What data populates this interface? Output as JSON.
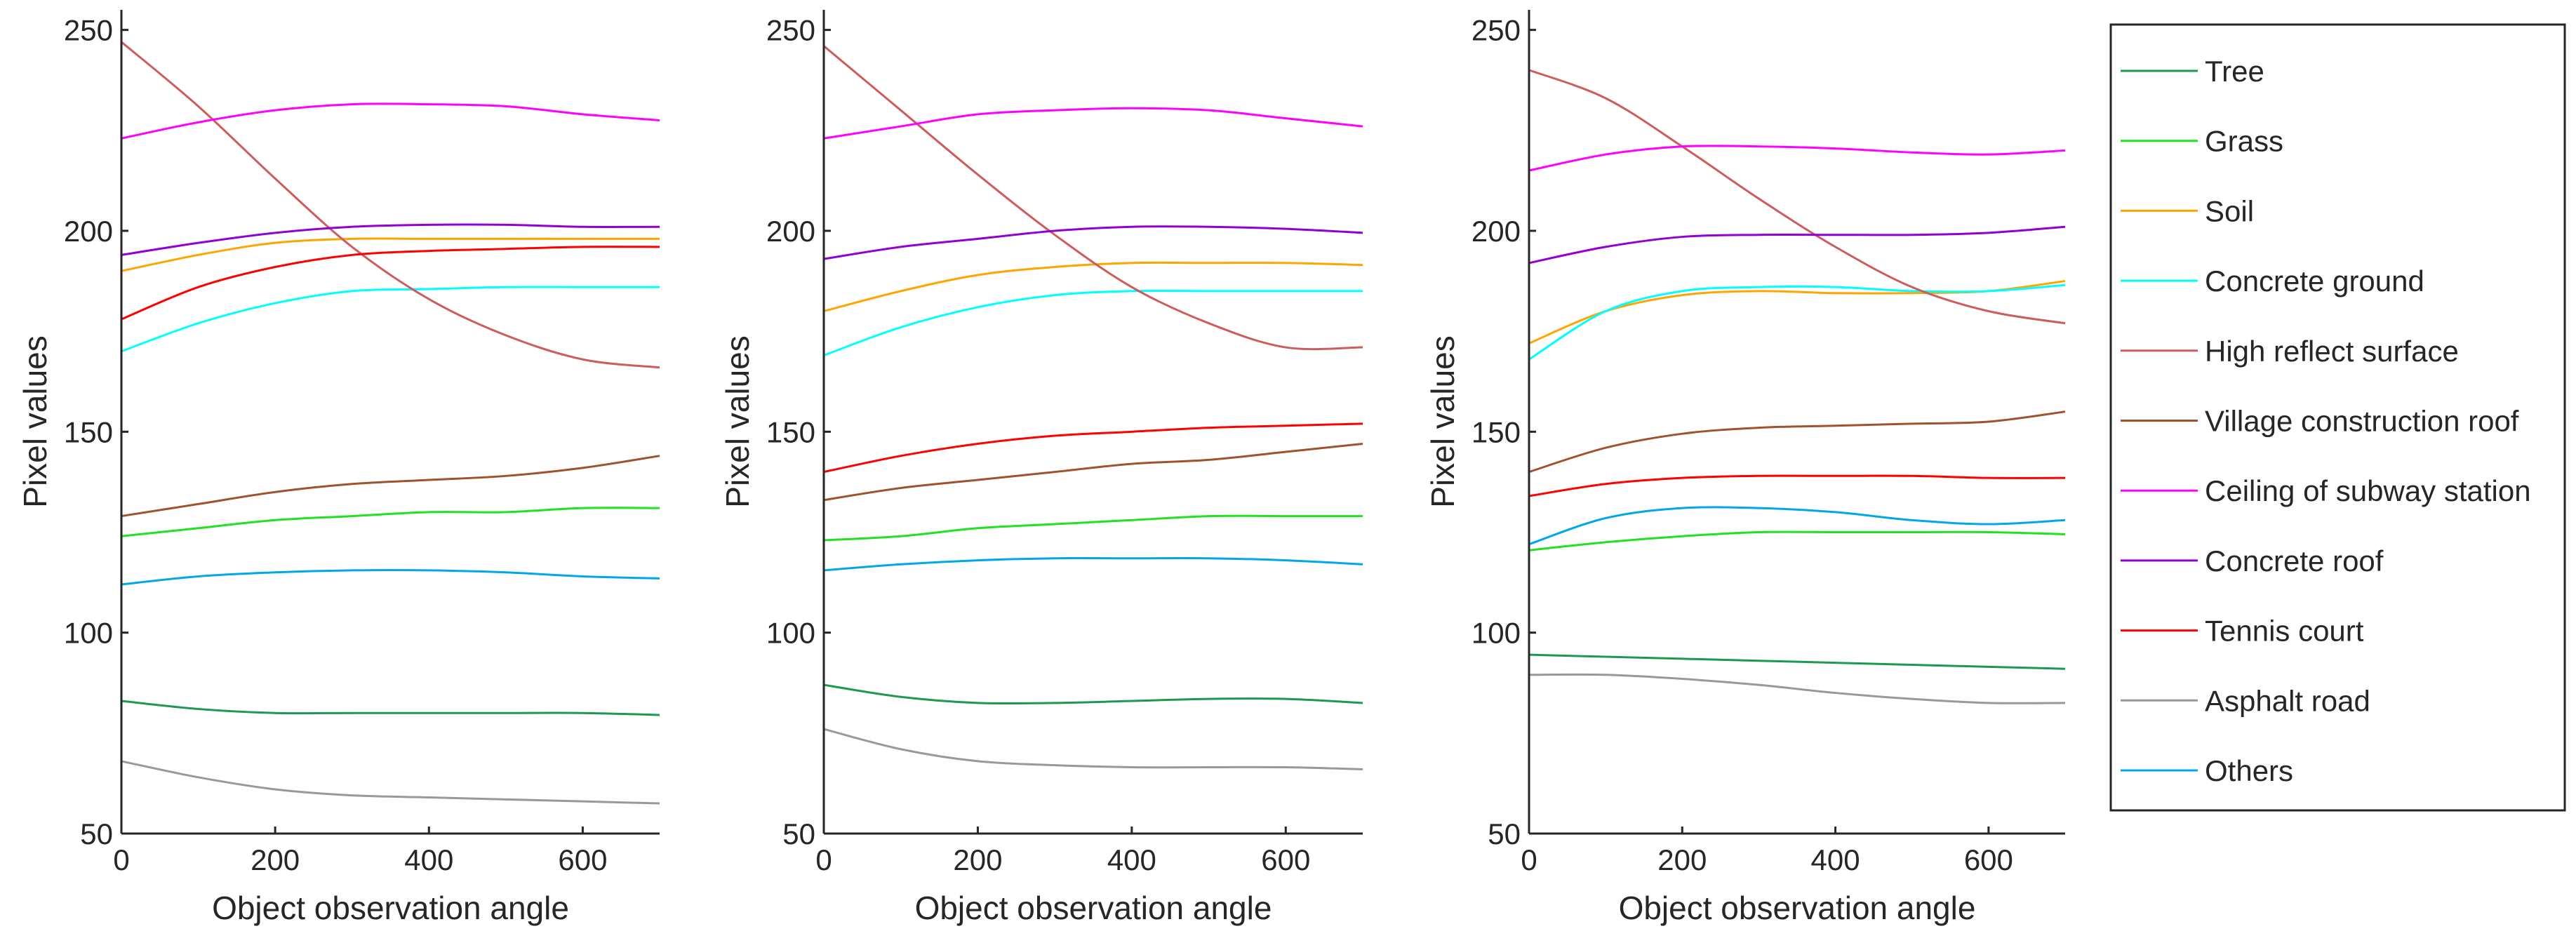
{
  "chart_data": [
    {
      "type": "line",
      "xlabel": "Object observation angle",
      "ylabel": "Pixel values",
      "x": [
        0,
        100,
        200,
        300,
        400,
        500,
        600,
        700
      ],
      "xlim": [
        0,
        700
      ],
      "ylim": [
        50,
        255
      ],
      "xticks": [
        0,
        200,
        400,
        600
      ],
      "yticks": [
        50,
        100,
        150,
        200,
        250
      ],
      "series": [
        {
          "name": "Tree",
          "color": "#1b9a50",
          "values": [
            83,
            81,
            80,
            80,
            80,
            80,
            80,
            79.5
          ]
        },
        {
          "name": "Grass",
          "color": "#22e022",
          "values": [
            124,
            126,
            128,
            129,
            130,
            130,
            131,
            131
          ]
        },
        {
          "name": "Soil",
          "color": "#ffa500",
          "values": [
            190,
            194,
            197,
            198,
            198,
            198,
            198,
            198
          ]
        },
        {
          "name": "Concrete ground",
          "color": "#00ffff",
          "values": [
            170,
            177,
            182,
            185,
            185.5,
            186,
            186,
            186
          ]
        },
        {
          "name": "High reflect surface",
          "color": "#cd5c5c",
          "values": [
            247,
            231,
            213,
            196,
            183,
            174,
            168,
            166
          ]
        },
        {
          "name": "Village construction roof",
          "color": "#a0522d",
          "values": [
            129,
            132,
            135,
            137,
            138,
            139,
            141,
            144
          ]
        },
        {
          "name": "Ceiling of subway station",
          "color": "#ff00ff",
          "values": [
            223,
            227,
            230,
            231.5,
            231.5,
            231,
            229,
            227.5
          ]
        },
        {
          "name": "Concrete roof",
          "color": "#9400d3",
          "values": [
            194,
            197,
            199.5,
            201,
            201.5,
            201.5,
            201,
            201
          ]
        },
        {
          "name": "Tennis court",
          "color": "#ff0000",
          "values": [
            178,
            186,
            191,
            194,
            195,
            195.5,
            196,
            196
          ]
        },
        {
          "name": "Asphalt road",
          "color": "#999999",
          "values": [
            68,
            64,
            61,
            59.5,
            59,
            58.5,
            58,
            57.5
          ]
        },
        {
          "name": "Others",
          "color": "#00a8e8",
          "values": [
            112,
            114,
            115,
            115.5,
            115.5,
            115,
            114,
            113.5
          ]
        }
      ]
    },
    {
      "type": "line",
      "xlabel": "Object observation angle",
      "ylabel": "Pixel values",
      "x": [
        0,
        100,
        200,
        300,
        400,
        500,
        600,
        700
      ],
      "xlim": [
        0,
        700
      ],
      "ylim": [
        50,
        255
      ],
      "xticks": [
        0,
        200,
        400,
        600
      ],
      "yticks": [
        50,
        100,
        150,
        200,
        250
      ],
      "series": [
        {
          "values": [
            87,
            84,
            82.5,
            82.5,
            83,
            83.5,
            83.5,
            82.5
          ]
        },
        {
          "values": [
            123,
            124,
            126,
            127,
            128,
            129,
            129,
            129
          ]
        },
        {
          "values": [
            180,
            185,
            189,
            191,
            192,
            192,
            192,
            191.5
          ]
        },
        {
          "values": [
            169,
            176,
            181,
            184,
            185,
            185,
            185,
            185
          ]
        },
        {
          "values": [
            246,
            230,
            214,
            199,
            186,
            177,
            171,
            171
          ]
        },
        {
          "values": [
            133,
            136,
            138,
            140,
            142,
            143,
            145,
            147
          ]
        },
        {
          "values": [
            223,
            226,
            229,
            230,
            230.5,
            230,
            228,
            226
          ]
        },
        {
          "values": [
            193,
            196,
            198,
            200,
            201,
            201,
            200.5,
            199.5
          ]
        },
        {
          "values": [
            140,
            144,
            147,
            149,
            150,
            151,
            151.5,
            152
          ]
        },
        {
          "values": [
            76,
            71,
            68,
            67,
            66.5,
            66.5,
            66.5,
            66
          ]
        },
        {
          "values": [
            115.5,
            117,
            118,
            118.5,
            118.5,
            118.5,
            118,
            117
          ]
        }
      ]
    },
    {
      "type": "line",
      "xlabel": "Object observation angle",
      "ylabel": "Pixel values",
      "x": [
        0,
        100,
        200,
        300,
        400,
        500,
        600,
        700
      ],
      "xlim": [
        0,
        700
      ],
      "ylim": [
        50,
        255
      ],
      "xticks": [
        0,
        200,
        400,
        600
      ],
      "yticks": [
        50,
        100,
        150,
        200,
        250
      ],
      "series": [
        {
          "values": [
            94.5,
            94,
            93.5,
            93,
            92.5,
            92,
            91.5,
            91
          ]
        },
        {
          "values": [
            120.5,
            122.5,
            124,
            125,
            125,
            125,
            125,
            124.5
          ]
        },
        {
          "values": [
            172,
            180,
            184,
            185,
            184.5,
            184.5,
            185,
            187.5
          ]
        },
        {
          "values": [
            168,
            180,
            185,
            186,
            186,
            185,
            185,
            186.5
          ]
        },
        {
          "values": [
            240,
            233,
            221,
            208,
            196,
            186,
            180,
            177
          ]
        },
        {
          "values": [
            140,
            146,
            149.5,
            151,
            151.5,
            152,
            152.5,
            155
          ]
        },
        {
          "values": [
            215,
            219,
            221,
            221,
            220.5,
            219.5,
            219,
            220
          ]
        },
        {
          "values": [
            192,
            196,
            198.5,
            199,
            199,
            199,
            199.5,
            201
          ]
        },
        {
          "values": [
            134,
            137,
            138.5,
            139,
            139,
            139,
            138.5,
            138.5
          ]
        },
        {
          "values": [
            89.5,
            89.5,
            88.5,
            87,
            85,
            83.5,
            82.5,
            82.5
          ]
        },
        {
          "values": [
            122,
            128.5,
            131,
            131,
            130,
            128,
            127,
            128
          ]
        }
      ]
    }
  ]
}
